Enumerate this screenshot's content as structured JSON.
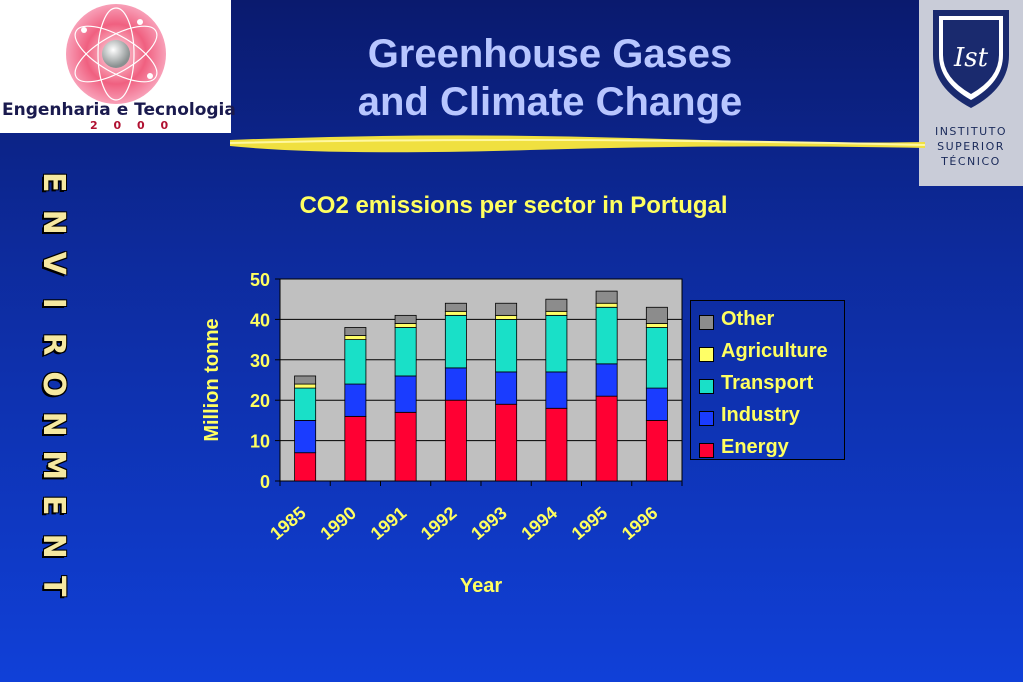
{
  "header": {
    "title_line1": "Greenhouse Gases",
    "title_line2": "and Climate Change",
    "left_logo": {
      "brand": "Engenharia e Tecnologia",
      "year": "2 0 0 0"
    },
    "right_logo": {
      "line1": "INSTITUTO",
      "line2": "SUPERIOR",
      "line3": "TÉCNICO",
      "emblem": "Ist"
    }
  },
  "side_word": [
    "E",
    "N",
    "V",
    "I",
    "R",
    "O",
    "N",
    "M",
    "E",
    "N",
    "T"
  ],
  "chart_data": {
    "type": "bar",
    "stacked": true,
    "title": "CO2 emissions per sector in Portugal",
    "xlabel": "Year",
    "ylabel": "Million tonne",
    "ylim": [
      0,
      50
    ],
    "yticks": [
      0,
      10,
      20,
      30,
      40,
      50
    ],
    "categories": [
      "1985",
      "1990",
      "1991",
      "1992",
      "1993",
      "1994",
      "1995",
      "1996"
    ],
    "series": [
      {
        "name": "Energy",
        "color": "#ff0033",
        "values": [
          7,
          16,
          17,
          20,
          19,
          18,
          21,
          15
        ]
      },
      {
        "name": "Industry",
        "color": "#1a3cff",
        "values": [
          8,
          8,
          9,
          8,
          8,
          9,
          8,
          8
        ]
      },
      {
        "name": "Transport",
        "color": "#19e0c8",
        "values": [
          8,
          11,
          12,
          13,
          13,
          14,
          14,
          15
        ]
      },
      {
        "name": "Agriculture",
        "color": "#ffff66",
        "values": [
          1,
          1,
          1,
          1,
          1,
          1,
          1,
          1
        ]
      },
      {
        "name": "Other",
        "color": "#8c8c8c",
        "values": [
          2,
          2,
          2,
          2,
          3,
          3,
          3,
          4
        ]
      }
    ],
    "legend_order": [
      "Other",
      "Agriculture",
      "Transport",
      "Industry",
      "Energy"
    ],
    "legend_position": "right",
    "plot_background": "#c0c0c0",
    "grid": true
  }
}
